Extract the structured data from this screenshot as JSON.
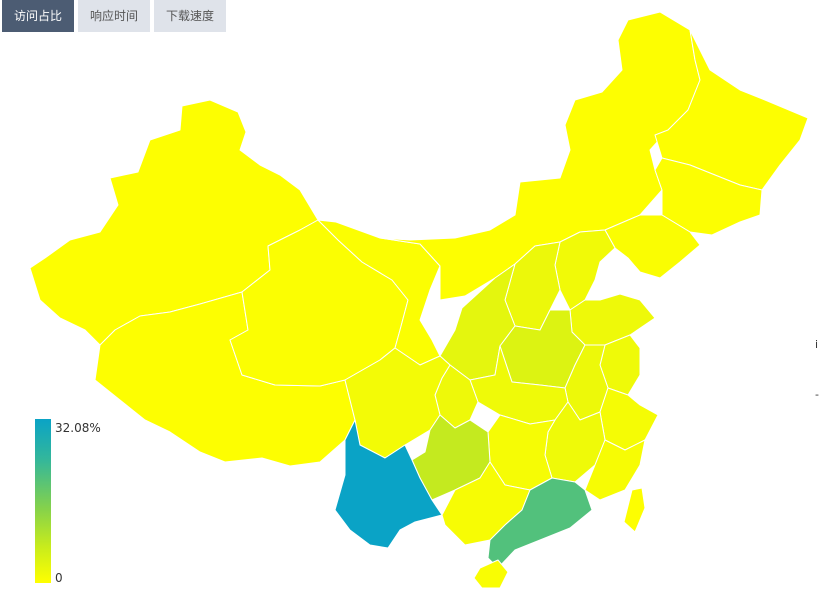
{
  "tabs": [
    {
      "label": "访问占比",
      "active": true
    },
    {
      "label": "响应时间",
      "active": false
    },
    {
      "label": "下载速度",
      "active": false
    }
  ],
  "legend": {
    "max": "32.08%",
    "min": "0"
  },
  "edge_text": [
    "i",
    "-"
  ],
  "colors": {
    "low": "#f6ff00",
    "high": "#0aa3c6",
    "border": "#ffffff",
    "tab_active": "#4c5c73",
    "tab_inactive": "#dfe3ea"
  },
  "regions": [
    {
      "name": "xinjiang",
      "value": 0.2
    },
    {
      "name": "tibet",
      "value": 0.2
    },
    {
      "name": "qinghai",
      "value": 0.5
    },
    {
      "name": "gansu",
      "value": 0.5
    },
    {
      "name": "inner-mongolia",
      "value": 0.3
    },
    {
      "name": "heilongjiang",
      "value": 0.3
    },
    {
      "name": "jilin",
      "value": 0.4
    },
    {
      "name": "liaoning",
      "value": 0.6
    },
    {
      "name": "sichuan",
      "value": 1.5
    },
    {
      "name": "chongqing",
      "value": 2.2
    },
    {
      "name": "shaanxi",
      "value": 3.5
    },
    {
      "name": "shanxi",
      "value": 2.5
    },
    {
      "name": "henan",
      "value": 4.5
    },
    {
      "name": "hubei",
      "value": 2.0
    },
    {
      "name": "hunan",
      "value": 1.2
    },
    {
      "name": "guizhou",
      "value": 7.5
    },
    {
      "name": "yunnan",
      "value": 32.08
    },
    {
      "name": "guangxi",
      "value": 1.0
    },
    {
      "name": "guangdong",
      "value": 20.5
    },
    {
      "name": "jiangxi",
      "value": 2.0
    },
    {
      "name": "fujian",
      "value": 1.0
    },
    {
      "name": "zhejiang",
      "value": 1.3
    },
    {
      "name": "anhui",
      "value": 2.3
    },
    {
      "name": "jiangsu",
      "value": 2.0
    },
    {
      "name": "shandong",
      "value": 2.2
    },
    {
      "name": "hebei",
      "value": 1.8
    },
    {
      "name": "hainan",
      "value": 0.8
    },
    {
      "name": "taiwan",
      "value": 0.2
    }
  ]
}
